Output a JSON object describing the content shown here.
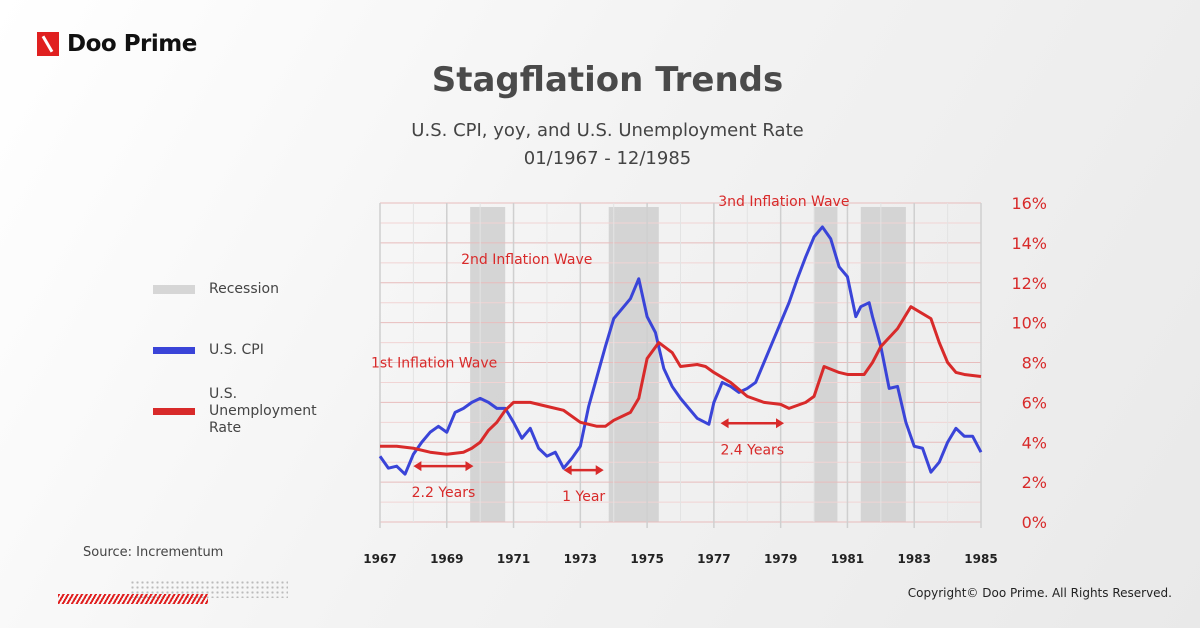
{
  "brand": {
    "name": "Doo Prime",
    "color": "#e02020"
  },
  "title": "Stagflation Trends",
  "subtitle1": "U.S. CPI, yoy, and U.S. Unemployment Rate",
  "subtitle2": "01/1967 - 12/1985",
  "legend": [
    {
      "label": "Recession",
      "color": "#d6d6d6"
    },
    {
      "label": "U.S. CPI",
      "color": "#3a44d8"
    },
    {
      "label": "U.S. Unemployment Rate",
      "color": "#d82a2a"
    }
  ],
  "source": "Source: Incrementum",
  "copyright": "Copyright© Doo Prime. All Rights Reserved.",
  "chart_data": {
    "type": "line",
    "xlim": [
      1967,
      1985
    ],
    "ylim": [
      0,
      16
    ],
    "x_ticks": [
      "1967",
      "1969",
      "1971",
      "1973",
      "1975",
      "1977",
      "1979",
      "1981",
      "1983",
      "1985"
    ],
    "y_ticks": [
      "0%",
      "2%",
      "4%",
      "6%",
      "8%",
      "10%",
      "12%",
      "14%",
      "16%"
    ],
    "grid": true,
    "recessions": [
      [
        1969.7,
        1970.75
      ],
      [
        1973.85,
        1975.35
      ],
      [
        1980.0,
        1980.7
      ],
      [
        1981.4,
        1982.75
      ]
    ],
    "series": [
      {
        "name": "U.S. CPI",
        "color": "#3a44d8",
        "points": [
          [
            1967,
            3.3
          ],
          [
            1967.25,
            2.7
          ],
          [
            1967.5,
            2.8
          ],
          [
            1967.75,
            2.4
          ],
          [
            1968,
            3.4
          ],
          [
            1968.25,
            4.0
          ],
          [
            1968.5,
            4.5
          ],
          [
            1968.75,
            4.8
          ],
          [
            1969,
            4.5
          ],
          [
            1969.25,
            5.5
          ],
          [
            1969.5,
            5.7
          ],
          [
            1969.75,
            6.0
          ],
          [
            1970,
            6.2
          ],
          [
            1970.25,
            6.0
          ],
          [
            1970.5,
            5.7
          ],
          [
            1970.75,
            5.7
          ],
          [
            1971,
            5.0
          ],
          [
            1971.25,
            4.2
          ],
          [
            1971.5,
            4.7
          ],
          [
            1971.75,
            3.7
          ],
          [
            1972,
            3.3
          ],
          [
            1972.25,
            3.5
          ],
          [
            1972.5,
            2.7
          ],
          [
            1972.75,
            3.2
          ],
          [
            1973,
            3.8
          ],
          [
            1973.25,
            5.8
          ],
          [
            1973.5,
            7.3
          ],
          [
            1973.75,
            8.8
          ],
          [
            1974,
            10.2
          ],
          [
            1974.25,
            10.7
          ],
          [
            1974.5,
            11.2
          ],
          [
            1974.75,
            12.2
          ],
          [
            1975,
            10.3
          ],
          [
            1975.25,
            9.5
          ],
          [
            1975.5,
            7.7
          ],
          [
            1975.75,
            6.8
          ],
          [
            1976,
            6.2
          ],
          [
            1976.25,
            5.7
          ],
          [
            1976.5,
            5.2
          ],
          [
            1976.85,
            4.9
          ],
          [
            1977,
            6.0
          ],
          [
            1977.25,
            7.0
          ],
          [
            1977.5,
            6.8
          ],
          [
            1977.75,
            6.5
          ],
          [
            1978,
            6.7
          ],
          [
            1978.25,
            7.0
          ],
          [
            1978.5,
            8.0
          ],
          [
            1978.75,
            9.0
          ],
          [
            1979,
            10.0
          ],
          [
            1979.25,
            11.0
          ],
          [
            1979.5,
            12.2
          ],
          [
            1979.75,
            13.3
          ],
          [
            1980,
            14.3
          ],
          [
            1980.25,
            14.8
          ],
          [
            1980.5,
            14.2
          ],
          [
            1980.75,
            12.8
          ],
          [
            1981,
            12.3
          ],
          [
            1981.25,
            10.3
          ],
          [
            1981.4,
            10.8
          ],
          [
            1981.65,
            11.0
          ],
          [
            1981.75,
            10.3
          ],
          [
            1982,
            8.8
          ],
          [
            1982.25,
            6.7
          ],
          [
            1982.5,
            6.8
          ],
          [
            1982.75,
            5.0
          ],
          [
            1983,
            3.8
          ],
          [
            1983.25,
            3.7
          ],
          [
            1983.5,
            2.5
          ],
          [
            1983.75,
            3.0
          ],
          [
            1984,
            4.0
          ],
          [
            1984.25,
            4.7
          ],
          [
            1984.5,
            4.3
          ],
          [
            1984.75,
            4.3
          ],
          [
            1985,
            3.5
          ]
        ]
      },
      {
        "name": "U.S. Unemployment Rate",
        "color": "#d82a2a",
        "points": [
          [
            1967,
            3.8
          ],
          [
            1967.5,
            3.8
          ],
          [
            1968,
            3.7
          ],
          [
            1968.5,
            3.5
          ],
          [
            1969,
            3.4
          ],
          [
            1969.5,
            3.5
          ],
          [
            1969.75,
            3.7
          ],
          [
            1970,
            4.0
          ],
          [
            1970.25,
            4.6
          ],
          [
            1970.5,
            5.0
          ],
          [
            1970.75,
            5.6
          ],
          [
            1971,
            6.0
          ],
          [
            1971.5,
            6.0
          ],
          [
            1972,
            5.8
          ],
          [
            1972.5,
            5.6
          ],
          [
            1973,
            5.0
          ],
          [
            1973.5,
            4.8
          ],
          [
            1973.75,
            4.8
          ],
          [
            1974,
            5.1
          ],
          [
            1974.5,
            5.5
          ],
          [
            1974.75,
            6.2
          ],
          [
            1975,
            8.2
          ],
          [
            1975.35,
            9.0
          ],
          [
            1975.75,
            8.5
          ],
          [
            1976,
            7.8
          ],
          [
            1976.5,
            7.9
          ],
          [
            1976.75,
            7.8
          ],
          [
            1977,
            7.5
          ],
          [
            1977.5,
            7.0
          ],
          [
            1978,
            6.3
          ],
          [
            1978.5,
            6.0
          ],
          [
            1979,
            5.9
          ],
          [
            1979.25,
            5.7
          ],
          [
            1979.75,
            6.0
          ],
          [
            1980,
            6.3
          ],
          [
            1980.3,
            7.8
          ],
          [
            1980.75,
            7.5
          ],
          [
            1981,
            7.4
          ],
          [
            1981.5,
            7.4
          ],
          [
            1981.75,
            8.0
          ],
          [
            1982,
            8.8
          ],
          [
            1982.5,
            9.7
          ],
          [
            1982.9,
            10.8
          ],
          [
            1983.5,
            10.2
          ],
          [
            1983.75,
            9.0
          ],
          [
            1984,
            8.0
          ],
          [
            1984.25,
            7.5
          ],
          [
            1984.5,
            7.4
          ],
          [
            1985,
            7.3
          ]
        ]
      }
    ],
    "annotations": [
      {
        "text": "1st Inflation Wave",
        "x": 1967.0,
        "y": 8.0
      },
      {
        "text": "2nd Inflation Wave",
        "x": 1969.7,
        "y": 13.2
      },
      {
        "text": "3nd Inflation Wave",
        "x": 1977.4,
        "y": 16.1
      },
      {
        "text": "2.2 Years",
        "from": 1968.0,
        "to": 1969.8,
        "y": 2.8
      },
      {
        "text": "1 Year",
        "from": 1972.5,
        "to": 1973.7,
        "y": 2.6
      },
      {
        "text": "2.4 Years",
        "from": 1977.2,
        "to": 1979.1,
        "y": 4.95
      }
    ]
  }
}
